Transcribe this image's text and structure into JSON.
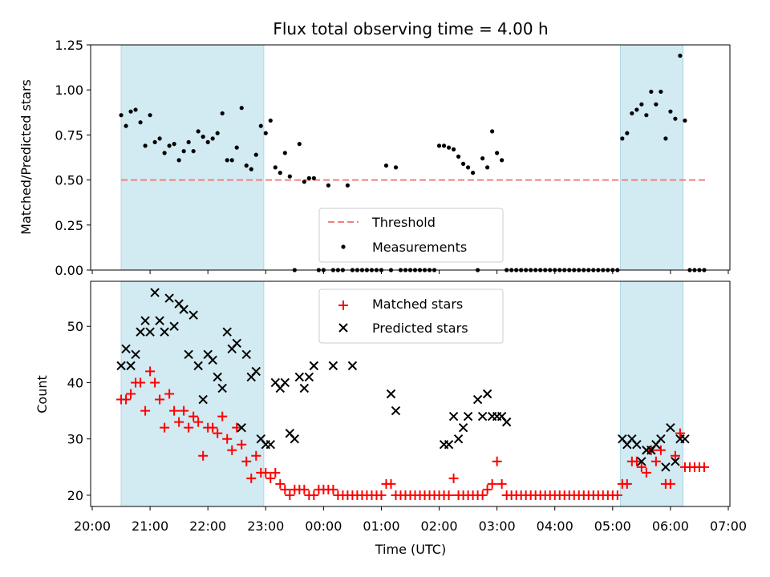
{
  "title": "Flux total observing time = 4.00 h",
  "colors": {
    "shade": "#add8e6",
    "threshold": "#f08080",
    "measurement": "#000000",
    "matched": "#ff0000",
    "predicted": "#000000"
  },
  "chart_data": [
    {
      "type": "scatter",
      "panel": "top",
      "ylabel": "Matched/Predicted stars",
      "ylim": [
        0,
        1.25
      ],
      "yticks": [
        "0.00",
        "0.25",
        "0.50",
        "0.75",
        "1.00",
        "1.25"
      ],
      "xlim": [
        "20:00",
        "07:00"
      ],
      "shaded_intervals": [
        [
          "20:30",
          "22:58"
        ],
        [
          "05:08",
          "06:13"
        ]
      ],
      "threshold": {
        "name": "Threshold",
        "value": 0.5,
        "x_range": [
          "20:30",
          "06:38"
        ]
      },
      "legend": {
        "position": "bottom-center",
        "entries": [
          "Threshold",
          "Measurements"
        ]
      },
      "series": [
        {
          "name": "Measurements",
          "x": [
            "20:30",
            "20:35",
            "20:40",
            "20:45",
            "20:50",
            "20:55",
            "21:00",
            "21:05",
            "21:10",
            "21:15",
            "21:20",
            "21:25",
            "21:30",
            "21:35",
            "21:40",
            "21:45",
            "21:50",
            "21:55",
            "22:00",
            "22:05",
            "22:10",
            "22:15",
            "22:20",
            "22:25",
            "22:30",
            "22:35",
            "22:40",
            "22:45",
            "22:50",
            "22:55",
            "23:00",
            "23:05",
            "23:10",
            "23:15",
            "23:20",
            "23:25",
            "23:30",
            "23:35",
            "23:40",
            "23:45",
            "23:50",
            "23:55",
            "00:00",
            "00:05",
            "00:10",
            "00:15",
            "00:20",
            "00:25",
            "00:30",
            "00:35",
            "00:40",
            "00:45",
            "00:50",
            "00:55",
            "01:00",
            "01:05",
            "01:10",
            "01:15",
            "01:20",
            "01:25",
            "01:30",
            "01:35",
            "01:40",
            "01:45",
            "01:50",
            "01:55",
            "02:00",
            "02:05",
            "02:10",
            "02:15",
            "02:20",
            "02:25",
            "02:30",
            "02:35",
            "02:40",
            "02:45",
            "02:50",
            "02:55",
            "03:00",
            "03:05",
            "03:10",
            "03:15",
            "03:20",
            "03:25",
            "03:30",
            "03:35",
            "03:40",
            "03:45",
            "03:50",
            "03:55",
            "04:00",
            "04:05",
            "04:10",
            "04:15",
            "04:20",
            "04:25",
            "04:30",
            "04:35",
            "04:40",
            "04:45",
            "04:50",
            "04:55",
            "05:00",
            "05:05",
            "05:10",
            "05:15",
            "05:20",
            "05:25",
            "05:30",
            "05:35",
            "05:40",
            "05:45",
            "05:50",
            "05:55",
            "06:00",
            "06:05",
            "06:10",
            "06:15",
            "06:20",
            "06:25",
            "06:30",
            "06:35"
          ],
          "y": [
            0.86,
            0.8,
            0.88,
            0.89,
            0.82,
            0.69,
            0.86,
            0.71,
            0.73,
            0.65,
            0.69,
            0.7,
            0.61,
            0.66,
            0.71,
            0.66,
            0.77,
            0.74,
            0.71,
            0.73,
            0.76,
            0.87,
            0.61,
            0.61,
            0.68,
            0.9,
            0.58,
            0.56,
            0.64,
            0.8,
            0.76,
            0.83,
            0.57,
            0.54,
            0.65,
            0.52,
            0.0,
            0.7,
            0.49,
            0.51,
            0.51,
            0.0,
            0.0,
            0.47,
            0.0,
            0.0,
            0.0,
            0.47,
            0.0,
            0.0,
            0.0,
            0.0,
            0.0,
            0.0,
            0.0,
            0.58,
            0.0,
            0.57,
            0.0,
            0.0,
            0.0,
            0.0,
            0.0,
            0.0,
            0.0,
            0.0,
            0.69,
            0.69,
            0.68,
            0.67,
            0.63,
            0.59,
            0.57,
            0.54,
            0.0,
            0.62,
            0.57,
            0.77,
            0.65,
            0.61,
            0.0,
            0.0,
            0.0,
            0.0,
            0.0,
            0.0,
            0.0,
            0.0,
            0.0,
            0.0,
            0.0,
            0.0,
            0.0,
            0.0,
            0.0,
            0.0,
            0.0,
            0.0,
            0.0,
            0.0,
            0.0,
            0.0,
            0.0,
            0.0,
            0.73,
            0.76,
            0.87,
            0.89,
            0.92,
            0.86,
            0.99,
            0.92,
            0.99,
            0.73,
            0.88,
            0.84,
            1.19,
            0.83,
            0.0,
            0.0,
            0.0,
            0.0
          ]
        }
      ]
    },
    {
      "type": "scatter",
      "panel": "bottom",
      "xlabel": "Time (UTC)",
      "ylabel": "Count",
      "ylim": [
        18,
        58
      ],
      "yticks": [
        "20",
        "30",
        "40",
        "50"
      ],
      "xlim": [
        "20:00",
        "07:00"
      ],
      "xticks": [
        "20:00",
        "21:00",
        "22:00",
        "23:00",
        "00:00",
        "01:00",
        "02:00",
        "03:00",
        "04:00",
        "05:00",
        "06:00",
        "07:00"
      ],
      "shaded_intervals": [
        [
          "20:30",
          "22:58"
        ],
        [
          "05:08",
          "06:13"
        ]
      ],
      "legend": {
        "position": "top-center",
        "entries": [
          "Matched stars",
          "Predicted stars"
        ]
      },
      "series": [
        {
          "name": "Matched stars",
          "x": [
            "20:30",
            "20:35",
            "20:40",
            "20:45",
            "20:50",
            "20:55",
            "21:00",
            "21:05",
            "21:10",
            "21:15",
            "21:20",
            "21:25",
            "21:30",
            "21:35",
            "21:40",
            "21:45",
            "21:50",
            "21:55",
            "22:00",
            "22:05",
            "22:10",
            "22:15",
            "22:20",
            "22:25",
            "22:30",
            "22:35",
            "22:40",
            "22:45",
            "22:50",
            "22:55",
            "23:00",
            "23:05",
            "23:10",
            "23:15",
            "23:20",
            "23:25",
            "23:30",
            "23:35",
            "23:40",
            "23:45",
            "23:50",
            "23:55",
            "00:00",
            "00:05",
            "00:10",
            "00:15",
            "00:20",
            "00:25",
            "00:30",
            "00:35",
            "00:40",
            "00:45",
            "00:50",
            "00:55",
            "01:00",
            "01:05",
            "01:10",
            "01:15",
            "01:20",
            "01:25",
            "01:30",
            "01:35",
            "01:40",
            "01:45",
            "01:50",
            "01:55",
            "02:00",
            "02:05",
            "02:10",
            "02:15",
            "02:20",
            "02:25",
            "02:30",
            "02:35",
            "02:40",
            "02:45",
            "02:50",
            "02:55",
            "03:00",
            "03:05",
            "03:10",
            "03:15",
            "03:20",
            "03:25",
            "03:30",
            "03:35",
            "03:40",
            "03:45",
            "03:50",
            "03:55",
            "04:00",
            "04:05",
            "04:10",
            "04:15",
            "04:20",
            "04:25",
            "04:30",
            "04:35",
            "04:40",
            "04:45",
            "04:50",
            "04:55",
            "05:00",
            "05:05",
            "05:10",
            "05:15",
            "05:20",
            "05:25",
            "05:30",
            "05:35",
            "05:40",
            "05:45",
            "05:50",
            "05:55",
            "06:00",
            "06:05",
            "06:10",
            "06:15",
            "06:20",
            "06:25",
            "06:30",
            "06:35"
          ],
          "y": [
            37,
            37,
            38,
            40,
            40,
            35,
            42,
            40,
            37,
            32,
            38,
            35,
            33,
            35,
            32,
            34,
            33,
            27,
            32,
            32,
            31,
            34,
            30,
            28,
            32,
            29,
            26,
            23,
            27,
            24,
            24,
            23,
            24,
            22,
            21,
            20,
            21,
            21,
            21,
            20,
            20,
            21,
            21,
            21,
            21,
            20,
            20,
            20,
            20,
            20,
            20,
            20,
            20,
            20,
            20,
            22,
            22,
            20,
            20,
            20,
            20,
            20,
            20,
            20,
            20,
            20,
            20,
            20,
            20,
            23,
            20,
            20,
            20,
            20,
            20,
            20,
            21,
            22,
            26,
            22,
            20,
            20,
            20,
            20,
            20,
            20,
            20,
            20,
            20,
            20,
            20,
            20,
            20,
            20,
            20,
            20,
            20,
            20,
            20,
            20,
            20,
            20,
            20,
            20,
            22,
            22,
            26,
            26,
            25,
            24,
            28,
            26,
            28,
            22,
            22,
            27,
            31,
            25,
            25,
            25,
            25,
            25
          ]
        },
        {
          "name": "Predicted stars",
          "x": [
            "20:30",
            "20:35",
            "20:40",
            "20:45",
            "20:50",
            "20:55",
            "21:00",
            "21:05",
            "21:10",
            "21:15",
            "21:20",
            "21:25",
            "21:30",
            "21:35",
            "21:40",
            "21:45",
            "21:50",
            "21:55",
            "22:00",
            "22:05",
            "22:10",
            "22:15",
            "22:20",
            "22:25",
            "22:30",
            "22:35",
            "22:40",
            "22:45",
            "22:50",
            "22:55",
            "23:00",
            "23:05",
            "23:10",
            "23:15",
            "23:20",
            "23:25",
            "23:30",
            "23:35",
            "23:40",
            "23:45",
            "23:50",
            "00:10",
            "00:30",
            "01:10",
            "01:15",
            "02:05",
            "02:10",
            "02:15",
            "02:20",
            "02:25",
            "02:30",
            "02:40",
            "02:45",
            "02:50",
            "02:55",
            "03:00",
            "03:05",
            "03:10",
            "05:10",
            "05:15",
            "05:20",
            "05:25",
            "05:30",
            "05:35",
            "05:40",
            "05:45",
            "05:50",
            "05:55",
            "06:00",
            "06:05",
            "06:10",
            "06:15"
          ],
          "y": [
            43,
            46,
            43,
            45,
            49,
            51,
            49,
            56,
            51,
            49,
            55,
            50,
            54,
            53,
            45,
            52,
            43,
            37,
            45,
            44,
            41,
            39,
            49,
            46,
            47,
            32,
            45,
            41,
            42,
            30,
            29,
            29,
            40,
            39,
            40,
            31,
            30,
            41,
            39,
            41,
            43,
            43,
            43,
            38,
            35,
            29,
            29,
            34,
            30,
            32,
            34,
            37,
            34,
            38,
            34,
            34,
            34,
            33,
            30,
            29,
            30,
            29,
            26,
            28,
            28,
            29,
            30,
            25,
            32,
            26,
            30,
            30
          ]
        }
      ]
    }
  ]
}
